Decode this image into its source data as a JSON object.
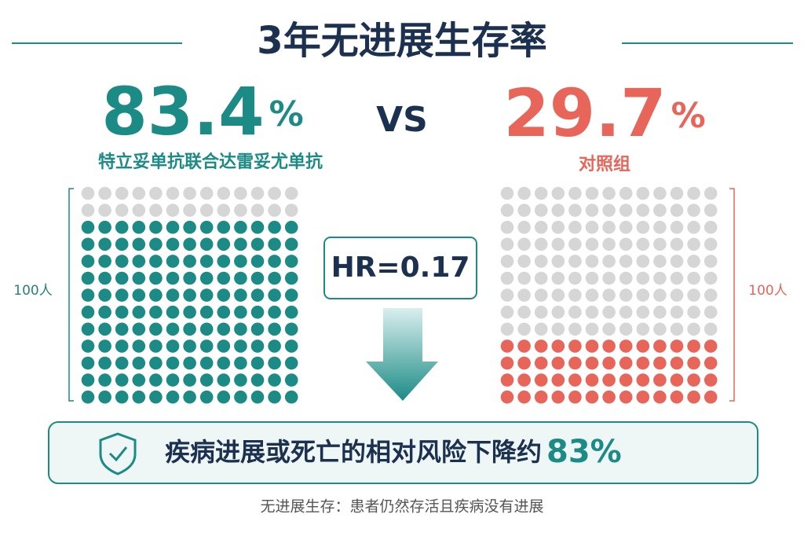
{
  "title": "3年无进展生存率",
  "treatment": {
    "value": 83.4,
    "unit": "%",
    "name": "特立妥单抗联合达雷妥尤单抗",
    "count_label": "100人"
  },
  "vs": "VS",
  "control": {
    "value": 29.7,
    "unit": "%",
    "name": "对照组",
    "count_label": "100人"
  },
  "hazard_ratio": "HR=0.17",
  "conclusion": {
    "text": "疾病进展或死亡的相对风险下降约",
    "value": "83%"
  },
  "footnote": "无进展生存：患者仍然存活且疾病没有进展"
}
